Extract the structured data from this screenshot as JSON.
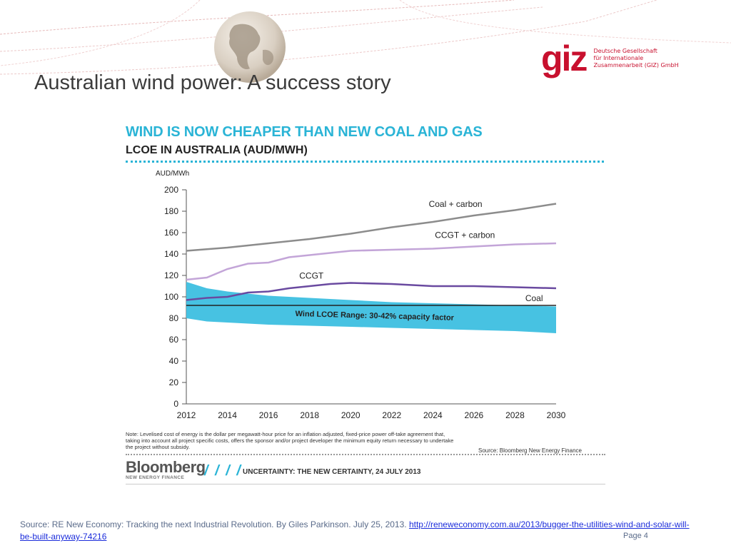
{
  "slide": {
    "title": "Australian wind power: A success story",
    "page_label": "Page 4",
    "source_text": "Source: RE New Economy: Tracking the next Industrial Revolution. By Giles Parkinson. July 25, 2013. ",
    "source_link": "http://reneweconomy.com.au/2013/bugger-the-utilities-wind-and-solar-will-be-built-anyway-74216"
  },
  "logo": {
    "mark": "giz",
    "line1": "Deutsche Gesellschaft",
    "line2": "für Internationale",
    "line3": "Zusammenarbeit (GIZ) GmbH",
    "color": "#c8102e"
  },
  "chart_header": {
    "headline": "WIND IS NOW CHEAPER THAN NEW COAL AND GAS",
    "subheadline": "LCOE IN AUSTRALIA (AUD/MWH)",
    "accent": "#2ab4d6"
  },
  "chart_footer": {
    "note": "Note: Levelised cost of energy is the dollar per megawatt-hour price for an inflation adjusted, fixed-price power off-take agreement that, taking into account all project specific costs, offers the sponsor and/or project developer the minimum equity return necessary to undertake the project without subsidy.",
    "source": "Source: Bloomberg New Energy Finance",
    "brand": "Bloomberg",
    "brand_sub": "NEW ENERGY FINANCE",
    "slashes": "/ / / /",
    "tagline": "UNCERTAINTY: THE NEW CERTAINTY, 24 JULY 2013"
  },
  "chart_data": {
    "type": "line",
    "title": "LCOE IN AUSTRALIA (AUD/MWH)",
    "ylabel": "AUD/MWh",
    "xlabel": "",
    "ylim": [
      0,
      200
    ],
    "xlim": [
      2012,
      2030
    ],
    "x_ticks": [
      2012,
      2014,
      2016,
      2018,
      2020,
      2022,
      2024,
      2026,
      2028,
      2030
    ],
    "y_ticks": [
      0,
      20,
      40,
      60,
      80,
      100,
      120,
      140,
      160,
      180,
      200
    ],
    "grid": false,
    "series": [
      {
        "name": "Coal + carbon",
        "color": "#8c8c8c",
        "x": [
          2012,
          2014,
          2016,
          2018,
          2020,
          2022,
          2024,
          2026,
          2028,
          2030
        ],
        "values": [
          143,
          146,
          150,
          154,
          159,
          165,
          170,
          176,
          181,
          187
        ]
      },
      {
        "name": "CCGT + carbon",
        "color": "#c3a5d8",
        "x": [
          2012,
          2012.5,
          2013,
          2014,
          2015,
          2016,
          2017,
          2018,
          2019,
          2020,
          2022,
          2024,
          2026,
          2028,
          2030
        ],
        "values": [
          116,
          117,
          118,
          126,
          131,
          132,
          137,
          139,
          141,
          143,
          144,
          145,
          147,
          149,
          150
        ]
      },
      {
        "name": "CCGT",
        "color": "#6a4aa0",
        "x": [
          2012,
          2013,
          2014,
          2015,
          2016,
          2017,
          2018,
          2019,
          2020,
          2022,
          2024,
          2026,
          2028,
          2030
        ],
        "values": [
          97,
          99,
          100,
          104,
          105,
          108,
          110,
          112,
          113,
          112,
          110,
          110,
          109,
          108
        ]
      },
      {
        "name": "Coal",
        "color": "#222222",
        "x": [
          2012,
          2030
        ],
        "values": [
          92,
          92
        ]
      }
    ],
    "band": {
      "name": "Wind LCOE Range: 30-42% capacity factor",
      "color": "#3dbfe0",
      "x": [
        2012,
        2013,
        2014,
        2016,
        2018,
        2020,
        2022,
        2024,
        2026,
        2028,
        2030
      ],
      "upper": [
        114,
        108,
        105,
        101,
        99,
        97,
        95,
        94,
        93,
        92,
        91
      ],
      "lower": [
        80,
        77,
        76,
        74,
        73,
        72,
        71,
        70,
        69,
        68,
        66
      ]
    },
    "annotations": [
      {
        "text": "Coal + carbon",
        "x": 2023.8,
        "y": 184
      },
      {
        "text": "CCGT + carbon",
        "x": 2024.1,
        "y": 155
      },
      {
        "text": "CCGT",
        "x": 2017.5,
        "y": 117
      },
      {
        "text": "Coal",
        "x": 2028.5,
        "y": 96
      },
      {
        "text": "Wind LCOE Range: 30-42% capacity factor",
        "x": 2017.3,
        "y": 82
      }
    ]
  }
}
